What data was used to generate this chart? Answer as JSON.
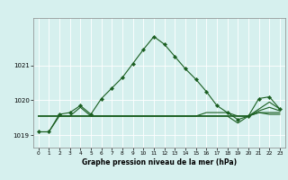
{
  "xlabel": "Graphe pression niveau de la mer (hPa)",
  "bg_color": "#d6f0ee",
  "line_color": "#1a5e20",
  "figsize": [
    3.2,
    2.0
  ],
  "dpi": 100,
  "ylim": [
    1018.65,
    1022.35
  ],
  "yticks": [
    1019,
    1020,
    1021
  ],
  "xlim": [
    -0.5,
    23.5
  ],
  "xticks": [
    0,
    1,
    2,
    3,
    4,
    5,
    6,
    7,
    8,
    9,
    10,
    11,
    12,
    13,
    14,
    15,
    16,
    17,
    18,
    19,
    20,
    21,
    22,
    23
  ],
  "main_y": [
    1019.1,
    1019.1,
    1019.6,
    1019.65,
    1019.85,
    1019.6,
    1020.05,
    1020.35,
    1020.65,
    1021.05,
    1021.45,
    1021.82,
    1021.6,
    1021.25,
    1020.9,
    1020.6,
    1020.25,
    1019.85,
    1019.65,
    1019.45,
    1019.55,
    1020.05,
    1020.1,
    1019.75
  ],
  "line2_y": [
    1019.55,
    1019.55,
    1019.55,
    1019.55,
    1019.55,
    1019.55,
    1019.55,
    1019.55,
    1019.55,
    1019.55,
    1019.55,
    1019.55,
    1019.55,
    1019.55,
    1019.55,
    1019.55,
    1019.55,
    1019.55,
    1019.55,
    1019.55,
    1019.55,
    1019.75,
    1019.95,
    1019.75
  ],
  "line3_y": [
    1019.55,
    1019.55,
    1019.55,
    1019.55,
    1019.55,
    1019.55,
    1019.55,
    1019.55,
    1019.55,
    1019.55,
    1019.55,
    1019.55,
    1019.55,
    1019.55,
    1019.55,
    1019.55,
    1019.55,
    1019.55,
    1019.55,
    1019.55,
    1019.55,
    1019.7,
    1019.8,
    1019.7
  ],
  "line4_y": [
    1019.1,
    1019.1,
    1019.55,
    1019.55,
    1019.8,
    1019.55,
    1019.55,
    1019.55,
    1019.55,
    1019.55,
    1019.55,
    1019.55,
    1019.55,
    1019.55,
    1019.55,
    1019.55,
    1019.55,
    1019.55,
    1019.55,
    1019.35,
    1019.55,
    1019.65,
    1019.6,
    1019.6
  ],
  "line5_y": [
    1019.55,
    1019.55,
    1019.55,
    1019.55,
    1019.55,
    1019.55,
    1019.55,
    1019.55,
    1019.55,
    1019.55,
    1019.55,
    1019.55,
    1019.55,
    1019.55,
    1019.55,
    1019.55,
    1019.65,
    1019.65,
    1019.65,
    1019.55,
    1019.55,
    1019.65,
    1019.65,
    1019.65
  ]
}
